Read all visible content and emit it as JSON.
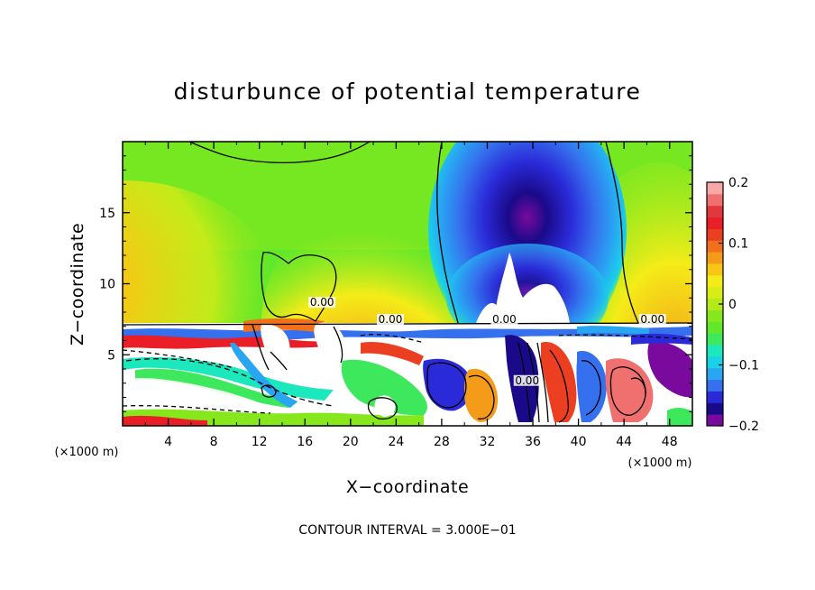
{
  "chart_data": {
    "type": "heatmap",
    "title": "disturbunce of potential temperature",
    "xlabel": "X−coordinate",
    "ylabel": "Z−coordinate",
    "x_unit": "(×1000 m)",
    "y_unit": "(×1000 m)",
    "xlim": [
      0,
      50
    ],
    "ylim": [
      0,
      20
    ],
    "x_ticks": [
      4,
      8,
      12,
      16,
      20,
      24,
      28,
      32,
      36,
      40,
      44,
      48
    ],
    "x_tick_labels": [
      "4",
      "8",
      "12",
      "16",
      "20",
      "24",
      "28",
      "32",
      "36",
      "40",
      "44",
      "48"
    ],
    "y_ticks": [
      5,
      10,
      15
    ],
    "y_tick_labels": [
      "5",
      "10",
      "15"
    ],
    "colorbar": {
      "min": -0.2,
      "max": 0.2,
      "tick_values": [
        0.2,
        0.1,
        0,
        -0.1,
        -0.2
      ],
      "tick_labels": [
        "0.2",
        "0.1",
        "0",
        "−0.1",
        "−0.2"
      ],
      "colors": [
        "#7a0a9e",
        "#1a0a8a",
        "#2a2ad8",
        "#3570ee",
        "#29a6f2",
        "#19d2e8",
        "#1be8bc",
        "#3de85c",
        "#60e82a",
        "#86e81c",
        "#b4ea1a",
        "#d8ec16",
        "#f4ec18",
        "#f6c814",
        "#f49c1a",
        "#f0701c",
        "#ec3e20",
        "#ea1e26",
        "#e0383c",
        "#f07070",
        "#f8a8a8"
      ]
    },
    "contour_labels": [
      {
        "text": "0.00",
        "x": 17.5,
        "z": 8.5
      },
      {
        "text": "0.00",
        "x": 23.5,
        "z": 7.3
      },
      {
        "text": "0.00",
        "x": 33.5,
        "z": 7.3
      },
      {
        "text": "0.00",
        "x": 46.5,
        "z": 7.3
      },
      {
        "text": "0.00",
        "x": 35.5,
        "z": 3.0
      }
    ],
    "contour_interval_note": "CONTOUR INTERVAL = 3.000E−01"
  }
}
